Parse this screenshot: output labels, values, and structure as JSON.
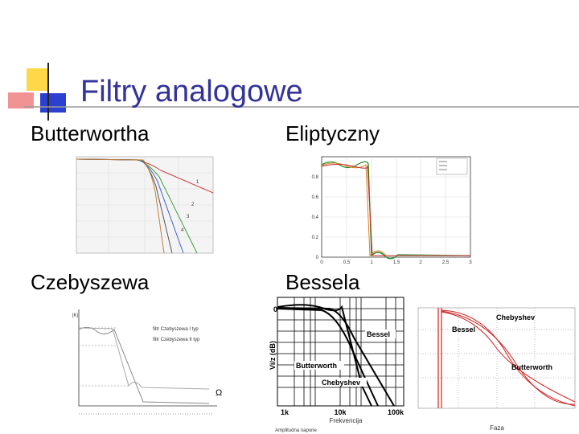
{
  "header": {
    "title": "Filtry analogowe"
  },
  "panels": [
    {
      "label": "Butterwortha",
      "figure": {
        "curve_labels": [
          "1",
          "2",
          "3",
          "4"
        ]
      }
    },
    {
      "label": "Eliptyczny",
      "figure": {
        "yticks": [
          "0",
          "0.2",
          "0.4",
          "0.6",
          "0.8"
        ],
        "xticks": [
          "0",
          "0.5",
          "1",
          "1.5",
          "2",
          "2.5",
          "3"
        ]
      }
    },
    {
      "label": "Czebyszewa",
      "figure": {
        "y_label": "|K|",
        "x_label": "Ω",
        "legend": [
          "filtr Czebyszewa I typ",
          "filtr Czebyszewa II typ"
        ]
      }
    },
    {
      "label": "Bessela",
      "figures": [
        {
          "y_label": "Vi/z (dB)",
          "y_tick": "0",
          "xticks": [
            "1k",
            "10k",
            "100k"
          ],
          "x_label": "Frekvencija",
          "curve_labels": [
            "Bessel",
            "Butterworth",
            "Chebyshev"
          ],
          "caption": "Amplitudna napone"
        },
        {
          "curve_labels": [
            "Chebyshev",
            "Bessel",
            "Butterworth"
          ],
          "x_label": "Faza"
        }
      ]
    }
  ]
}
